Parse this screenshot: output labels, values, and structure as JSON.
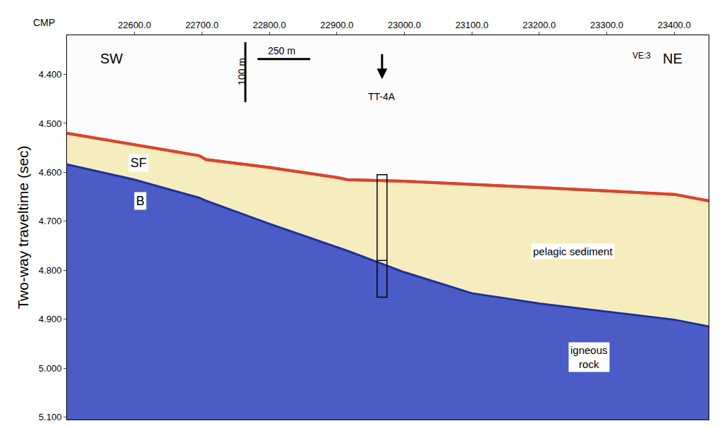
{
  "chart_data": {
    "type": "seismic_section",
    "x_label": "CMP",
    "y_label": "Two-way traveltime (sec)",
    "xlim": [
      22500,
      23451
    ],
    "ylim": [
      5.105,
      4.32
    ],
    "xticks": [
      {
        "value": 22600,
        "label": "22600.0"
      },
      {
        "value": 22700,
        "label": "22700.0"
      },
      {
        "value": 22800,
        "label": "22800.0"
      },
      {
        "value": 22900,
        "label": "22900.0"
      },
      {
        "value": 23000,
        "label": "23000.0"
      },
      {
        "value": 23100,
        "label": "23100.0"
      },
      {
        "value": 23200,
        "label": "23200.0"
      },
      {
        "value": 23300,
        "label": "23300.0"
      },
      {
        "value": 23400,
        "label": "23400.0"
      }
    ],
    "yticks": [
      {
        "value": 4.4,
        "label": "4.400"
      },
      {
        "value": 4.5,
        "label": "4.500"
      },
      {
        "value": 4.6,
        "label": "4.600"
      },
      {
        "value": 4.7,
        "label": "4.700"
      },
      {
        "value": 4.8,
        "label": "4.800"
      },
      {
        "value": 4.9,
        "label": "4.900"
      },
      {
        "value": 5.0,
        "label": "5.000"
      },
      {
        "value": 5.1,
        "label": "5.100"
      }
    ],
    "x": [
      22500,
      22600,
      22696,
      22706,
      22800,
      22902,
      22915,
      23000,
      23100,
      23200,
      23300,
      23400,
      23451
    ],
    "horizons": [
      {
        "name": "SF",
        "color": "#d9452b",
        "values": [
          4.52,
          4.543,
          4.566,
          4.574,
          4.59,
          4.611,
          4.615,
          4.618,
          4.624,
          4.631,
          4.638,
          4.645,
          4.658
        ]
      },
      {
        "name": "B",
        "color": "#1f2f9c",
        "values": [
          4.584,
          4.615,
          4.652,
          4.658,
          4.705,
          4.753,
          4.76,
          4.804,
          4.847,
          4.868,
          4.885,
          4.901,
          4.915
        ]
      }
    ],
    "units": [
      {
        "name": "pelagic sediment",
        "color": "#f6edbf"
      },
      {
        "name": "igneous\nrock",
        "color": "#4c5cc6"
      }
    ],
    "borehole": {
      "name": "TT-4A",
      "x": 22967,
      "top": 4.605,
      "bottom": 4.855,
      "divider": 4.78
    },
    "annotations": [
      "SW",
      "NE",
      "VE:3"
    ],
    "scale_bars": [
      "250 m",
      "100 m"
    ]
  }
}
